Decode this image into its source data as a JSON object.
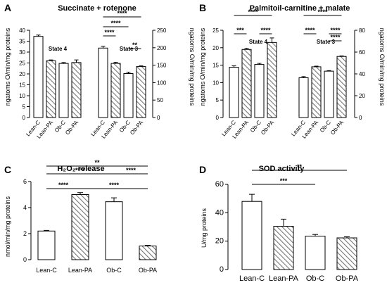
{
  "chart_data": [
    {
      "panel": "A",
      "type": "bar",
      "title": "Succinate + rotenone",
      "ylabel": "ngatoms O/min/mg proteins",
      "y2label": "ngatoms O/min/mg proteins",
      "ylim": [
        0,
        40
      ],
      "y2lim": [
        0,
        250
      ],
      "yticks": [
        0,
        5,
        10,
        15,
        20,
        25,
        30,
        35,
        40
      ],
      "y2ticks": [
        0,
        50,
        100,
        150,
        200,
        250
      ],
      "groups": [
        {
          "label": "State 4",
          "axis": "left",
          "categories": [
            "Lean-C",
            "Lean-PA",
            "Ob-C",
            "Ob-PA"
          ],
          "values": [
            37.2,
            26.0,
            24.8,
            25.2
          ],
          "errors": [
            0.6,
            0.4,
            0.4,
            1.2
          ],
          "hatched": [
            false,
            true,
            false,
            true
          ]
        },
        {
          "label": "State 3",
          "axis": "right",
          "categories": [
            "Lean-C",
            "Lean-PA",
            "Ob-C",
            "Ob-PA"
          ],
          "values": [
            199,
            155,
            126,
            146
          ],
          "errors": [
            5,
            3,
            4,
            2
          ],
          "hatched": [
            false,
            true,
            false,
            true
          ]
        }
      ],
      "significance": [
        {
          "from": [
            1,
            0
          ],
          "to": [
            1,
            3
          ],
          "label": "****"
        },
        {
          "from": [
            1,
            0
          ],
          "to": [
            1,
            2
          ],
          "label": "****"
        },
        {
          "from": [
            1,
            0
          ],
          "to": [
            1,
            1
          ],
          "label": "****"
        },
        {
          "from": [
            1,
            2
          ],
          "to": [
            1,
            3
          ],
          "label": "**"
        }
      ]
    },
    {
      "panel": "B",
      "type": "bar",
      "title": "Palmitoil-carnitine + malate",
      "ylabel": "ngatoms O/min/mg proteins",
      "y2label": "ngatoms O/min/mg proteins",
      "ylim": [
        0,
        25
      ],
      "y2lim": [
        0,
        80
      ],
      "yticks": [
        0,
        5,
        10,
        15,
        20,
        25
      ],
      "y2ticks": [
        0,
        20,
        40,
        60,
        80
      ],
      "groups": [
        {
          "label": "State 4",
          "axis": "left",
          "categories": [
            "Lean-C",
            "Lean-PA",
            "Ob-C",
            "Ob-PA"
          ],
          "values": [
            14.4,
            19.5,
            15.2,
            21.5
          ],
          "errors": [
            0.4,
            0.3,
            0.3,
            1.3
          ],
          "hatched": [
            false,
            true,
            false,
            true
          ]
        },
        {
          "label": "State 3",
          "axis": "right",
          "categories": [
            "Lean-C",
            "Lean-PA",
            "Ob-C",
            "Ob-PA"
          ],
          "values": [
            36.5,
            46.5,
            42.5,
            56
          ],
          "errors": [
            1.0,
            0.6,
            0.5,
            0.5
          ],
          "hatched": [
            false,
            true,
            false,
            true
          ]
        }
      ],
      "significance": [
        {
          "from": [
            0,
            0
          ],
          "to": [
            0,
            3
          ],
          "label": "****"
        },
        {
          "from": [
            0,
            0
          ],
          "to": [
            0,
            1
          ],
          "label": "***"
        },
        {
          "from": [
            0,
            2
          ],
          "to": [
            0,
            3
          ],
          "label": "****"
        },
        {
          "from": [
            1,
            0
          ],
          "to": [
            1,
            3
          ],
          "label": "****"
        },
        {
          "from": [
            1,
            0
          ],
          "to": [
            1,
            1
          ],
          "label": "****"
        },
        {
          "from": [
            1,
            2
          ],
          "to": [
            1,
            3
          ],
          "label": "****"
        },
        {
          "from": [
            1,
            2
          ],
          "to": [
            1,
            3
          ],
          "label": "****"
        }
      ]
    },
    {
      "panel": "C",
      "type": "bar",
      "title": "H₂O₂ release",
      "ylabel": "nmol/min/mg proteins",
      "ylim": [
        0,
        6
      ],
      "yticks": [
        0,
        2,
        4,
        6
      ],
      "categories": [
        "Lean-C",
        "Lean-PA",
        "Ob-C",
        "Ob-PA"
      ],
      "values": [
        2.2,
        5.0,
        4.45,
        1.05
      ],
      "errors": [
        0.05,
        0.15,
        0.3,
        0.05
      ],
      "hatched": [
        false,
        true,
        false,
        true
      ],
      "significance": [
        {
          "from": 0,
          "to": 3,
          "label": "**"
        },
        {
          "from": 0,
          "to": 2,
          "label": "****"
        },
        {
          "from": 2,
          "to": 3,
          "label": "****"
        },
        {
          "from": 0,
          "to": 1,
          "label": "****"
        },
        {
          "from": 1,
          "to": 3,
          "label": "****"
        }
      ]
    },
    {
      "panel": "D",
      "type": "bar",
      "title": "SOD activity",
      "ylabel": "U/mg proteins",
      "ylim": [
        0,
        60
      ],
      "yticks": [
        0,
        20,
        40,
        60
      ],
      "categories": [
        "Lean-C",
        "Lean-PA",
        "Ob-C",
        "Ob-PA"
      ],
      "values": [
        48,
        30.5,
        23.5,
        22.3
      ],
      "errors": [
        5,
        5,
        1.2,
        0.8
      ],
      "hatched": [
        false,
        true,
        false,
        true
      ],
      "significance": [
        {
          "from": 0,
          "to": 3,
          "label": "**"
        },
        {
          "from": 0,
          "to": 2,
          "label": "***"
        }
      ]
    }
  ]
}
